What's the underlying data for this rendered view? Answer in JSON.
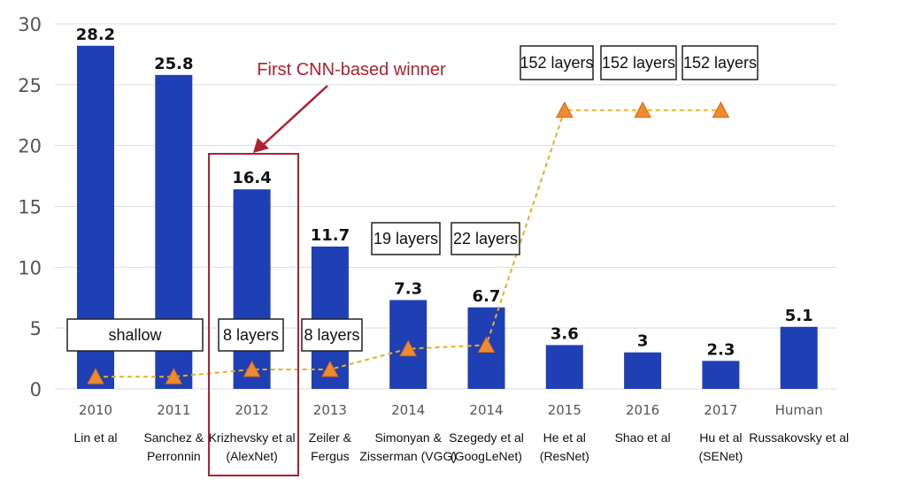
{
  "chart_data": {
    "type": "bar",
    "ylim": [
      0,
      30
    ],
    "yticks": [
      "0",
      "5",
      "10",
      "15",
      "20",
      "25",
      "30"
    ],
    "grid": true,
    "categories": [
      {
        "year": "2010",
        "author": [
          "Lin et al"
        ]
      },
      {
        "year": "2011",
        "author": [
          "Sanchez &",
          "Perronnin"
        ]
      },
      {
        "year": "2012",
        "author": [
          "Krizhevsky et al",
          "(AlexNet)"
        ]
      },
      {
        "year": "2013",
        "author": [
          "Zeiler &",
          "Fergus"
        ]
      },
      {
        "year": "2014",
        "author": [
          "Simonyan &",
          "Zisserman (VGG)"
        ]
      },
      {
        "year": "2014",
        "author": [
          "Szegedy et al",
          "(GoogLeNet)"
        ]
      },
      {
        "year": "2015",
        "author": [
          "He et al",
          "(ResNet)"
        ]
      },
      {
        "year": "2016",
        "author": [
          "Shao et al"
        ]
      },
      {
        "year": "2017",
        "author": [
          "Hu et al",
          "(SENet)"
        ]
      },
      {
        "year": "Human",
        "author": [
          "Russakovsky et al"
        ]
      }
    ],
    "values": [
      28.2,
      25.8,
      16.4,
      11.7,
      7.3,
      6.7,
      3.6,
      3,
      2.3,
      5.1
    ],
    "value_labels": [
      "28.2",
      "25.8",
      "16.4",
      "11.7",
      "7.3",
      "6.7",
      "3.6",
      "3",
      "2.3",
      "5.1"
    ],
    "bar_color": "#1f3fb4",
    "depth_series": {
      "values": [
        1,
        1,
        1.6,
        1.6,
        3.3,
        3.6,
        22.9,
        22.9,
        22.9
      ],
      "marker_color": "#f08a30",
      "line_color": "#e8b020"
    },
    "layer_boxes": [
      {
        "text": "shallow"
      },
      {
        "text": "8 layers"
      },
      {
        "text": "8 layers"
      },
      {
        "text": "19 layers"
      },
      {
        "text": "22 layers"
      },
      {
        "text": "152 layers"
      },
      {
        "text": "152 layers"
      },
      {
        "text": "152 layers"
      }
    ],
    "annotation": {
      "text": "First CNN-based winner",
      "color": "#b02030"
    }
  }
}
